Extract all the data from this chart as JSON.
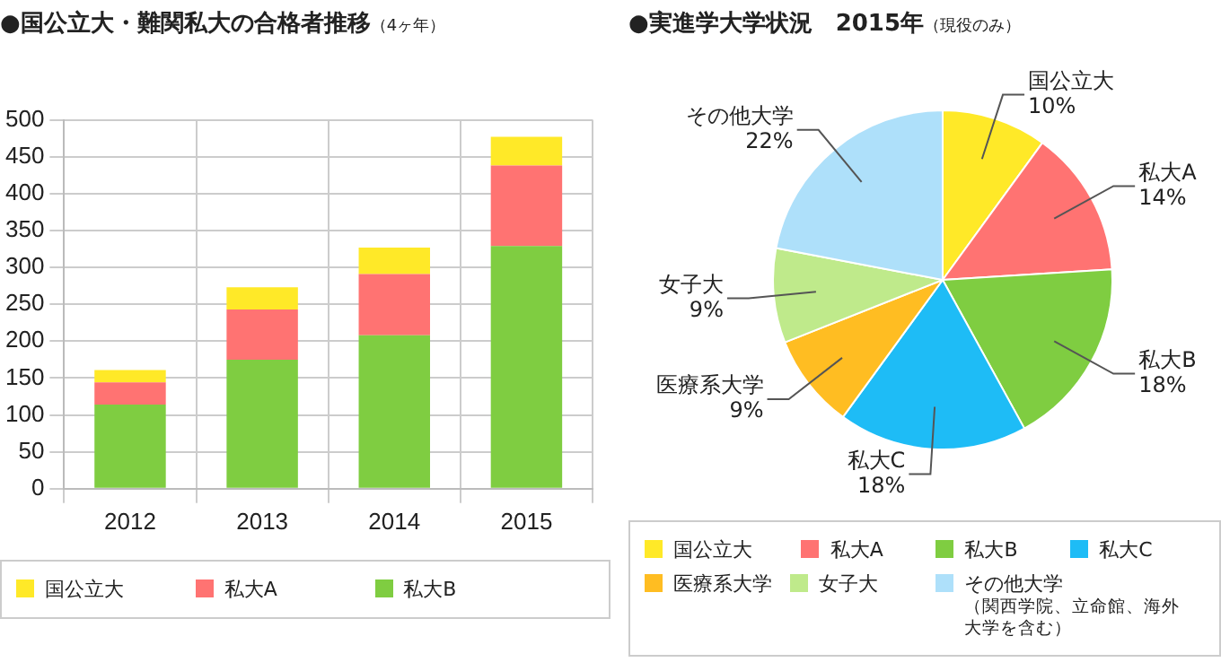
{
  "chart_data": [
    {
      "type": "bar",
      "title": "●国公立大・難関私大の合格者推移",
      "subtitle": "（4ヶ年）",
      "stacked": true,
      "categories": [
        "2012",
        "2013",
        "2014",
        "2015"
      ],
      "series": [
        {
          "name": "私大B",
          "color": "#7fcd41",
          "values": [
            114,
            175,
            208,
            329
          ]
        },
        {
          "name": "私大A",
          "color": "#ff7372",
          "values": [
            30,
            68,
            83,
            109
          ]
        },
        {
          "name": "国公立大",
          "color": "#ffe928",
          "values": [
            17,
            30,
            36,
            39
          ]
        }
      ],
      "ylim": [
        0,
        500
      ],
      "yticks": [
        0,
        50,
        100,
        150,
        200,
        250,
        300,
        350,
        400,
        450,
        500
      ],
      "grid": true,
      "legend": "bottom"
    },
    {
      "type": "pie",
      "title": "●実進学大学状況　2015年",
      "subtitle": "（現役のみ）",
      "categories": [
        "国公立大",
        "私大A",
        "私大B",
        "私大C",
        "医療系大学",
        "女子大",
        "その他大学"
      ],
      "values": [
        10,
        14,
        18,
        18,
        9,
        9,
        22
      ],
      "value_labels": [
        "10%",
        "14%",
        "18%",
        "18%",
        "9%",
        "9%",
        "22%"
      ],
      "colors": [
        "#ffe928",
        "#ff7372",
        "#7fcd41",
        "#1ebcf6",
        "#ffbd22",
        "#bfea8b",
        "#aee0fa"
      ],
      "annotations": [
        "（関西学院、立命館、海外大学を含む）"
      ],
      "legend": "bottom"
    }
  ]
}
